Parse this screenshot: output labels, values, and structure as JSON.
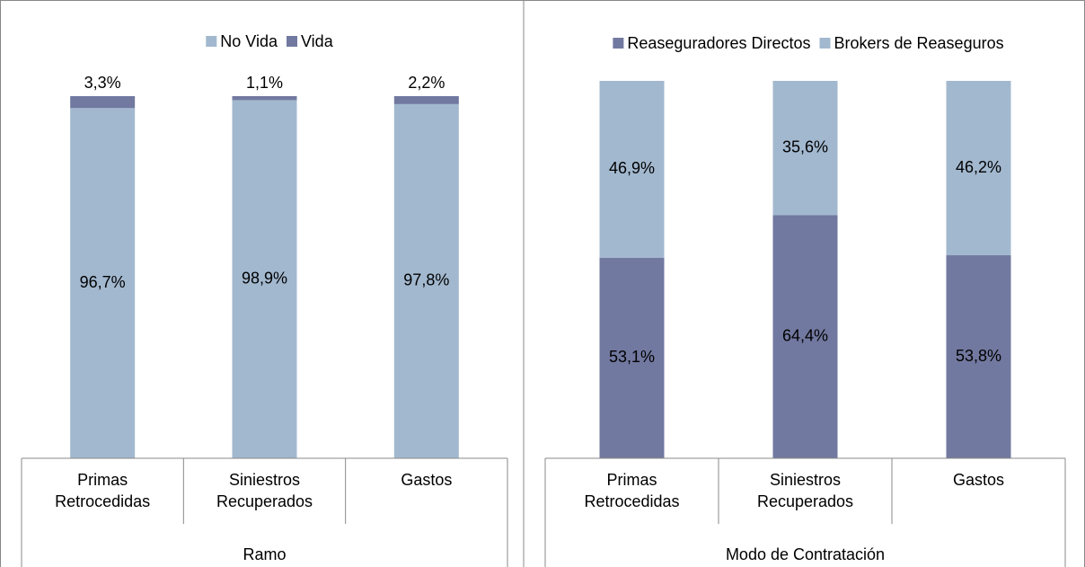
{
  "chart_data": [
    {
      "type": "bar",
      "stacked": true,
      "group_label": "Ramo",
      "categories": [
        "Primas Retrocedidas",
        "Siniestros Recuperados",
        "Gastos"
      ],
      "ylim": [
        0,
        100
      ],
      "series": [
        {
          "name": "No Vida",
          "color": "#a2b8cf",
          "values": [
            96.7,
            98.9,
            97.8
          ],
          "value_labels": [
            "96,7%",
            "98,9%",
            "97,8%"
          ]
        },
        {
          "name": "Vida",
          "color": "#7279a0",
          "values": [
            3.3,
            1.1,
            2.2
          ],
          "value_labels": [
            "3,3%",
            "1,1%",
            "2,2%"
          ]
        }
      ]
    },
    {
      "type": "bar",
      "stacked": true,
      "group_label": "Modo de Contratación",
      "categories": [
        "Primas Retrocedidas",
        "Siniestros Recuperados",
        "Gastos"
      ],
      "ylim": [
        0,
        100
      ],
      "series": [
        {
          "name": "Reaseguradores Directos",
          "color": "#7279a0",
          "values": [
            53.1,
            64.4,
            53.8
          ],
          "value_labels": [
            "53,1%",
            "64,4%",
            "53,8%"
          ]
        },
        {
          "name": "Brokers de Reaseguros",
          "color": "#a2b8cf",
          "values": [
            46.9,
            35.6,
            46.2
          ],
          "value_labels": [
            "46,9%",
            "35,6%",
            "46,2%"
          ]
        }
      ]
    }
  ]
}
